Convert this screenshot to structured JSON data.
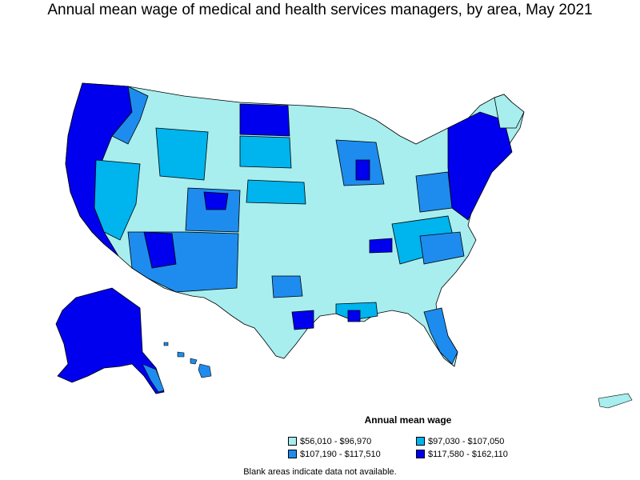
{
  "title": "Annual mean wage of medical and health services managers, by area, May 2021",
  "legend": {
    "title": "Annual mean wage",
    "items": [
      {
        "label": "$56,010 - $96,970",
        "color": "#a8eeee"
      },
      {
        "label": "$97,030 - $107,050",
        "color": "#00b4ee"
      },
      {
        "label": "$107,190 - $117,510",
        "color": "#1e8cee"
      },
      {
        "label": "$117,580 - $162,110",
        "color": "#0000ee"
      }
    ]
  },
  "note": "Blank areas indicate data not available."
}
